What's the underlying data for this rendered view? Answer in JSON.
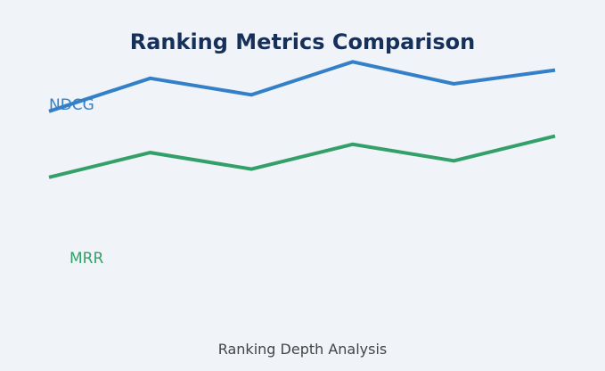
{
  "chart_data": {
    "type": "line",
    "title": "Ranking Metrics Comparison",
    "xlabel": "Ranking Depth Analysis",
    "ylabel": "",
    "x": [
      1,
      2,
      3,
      4,
      5,
      6
    ],
    "ylim": [
      0.25,
      0.85
    ],
    "grid": false,
    "legend": "none",
    "series": [
      {
        "name": "NDCG",
        "color": "#3480c8",
        "values": [
          0.68,
          0.74,
          0.71,
          0.77,
          0.73,
          0.755
        ]
      },
      {
        "name": "MRR",
        "color": "#33a06a",
        "values": [
          0.56,
          0.605,
          0.575,
          0.62,
          0.59,
          0.635
        ]
      }
    ]
  },
  "colors": {
    "background": "#f0f3f8",
    "title": "#16305a",
    "xlabel": "#444444"
  }
}
